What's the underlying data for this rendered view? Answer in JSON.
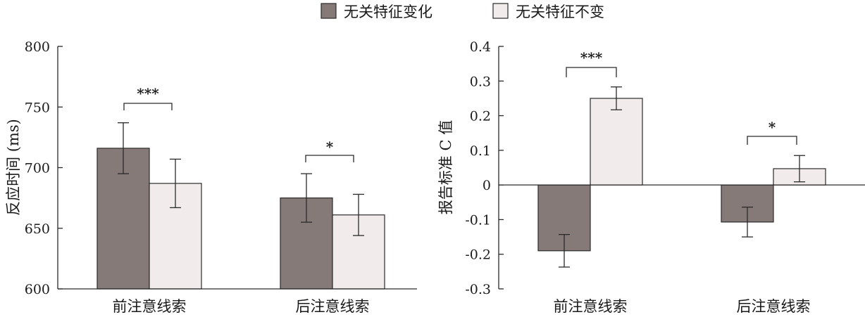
{
  "legend": {
    "series": [
      "无关特征变化",
      "无关特征不变"
    ],
    "colors": [
      "#857a78",
      "#f1eceb"
    ]
  },
  "chart_data": [
    {
      "type": "bar",
      "title": "",
      "xlabel": "",
      "ylabel": "反应时间 (ms)",
      "ylim": [
        600,
        800
      ],
      "yticks": [
        "600",
        "650",
        "700",
        "750",
        "800"
      ],
      "tick_values": [
        600,
        650,
        700,
        750,
        800
      ],
      "categories": [
        "前注意线索",
        "后注意线索"
      ],
      "series": [
        {
          "name": "无关特征变化",
          "values": [
            716,
            675
          ],
          "errors": [
            21,
            20
          ]
        },
        {
          "name": "无关特征不变",
          "values": [
            687,
            661
          ],
          "errors": [
            20,
            17
          ]
        }
      ],
      "significance": [
        "***",
        "*"
      ]
    },
    {
      "type": "bar",
      "title": "",
      "xlabel": "",
      "ylabel": "报告标准 C 值",
      "ylim": [
        -0.3,
        0.4
      ],
      "yticks": [
        "-0.3",
        "-0.2",
        "-0.1",
        "0",
        "0.1",
        "0.2",
        "0.3",
        "0.4"
      ],
      "tick_values": [
        -0.3,
        -0.2,
        -0.1,
        0,
        0.1,
        0.2,
        0.3,
        0.4
      ],
      "categories": [
        "前注意线索",
        "后注意线索"
      ],
      "series": [
        {
          "name": "无关特征变化",
          "values": [
            -0.19,
            -0.107
          ],
          "errors": [
            0.047,
            0.043
          ]
        },
        {
          "name": "无关特征不变",
          "values": [
            0.25,
            0.047
          ],
          "errors": [
            0.033,
            0.038
          ]
        }
      ],
      "significance": [
        "***",
        "*"
      ]
    }
  ]
}
